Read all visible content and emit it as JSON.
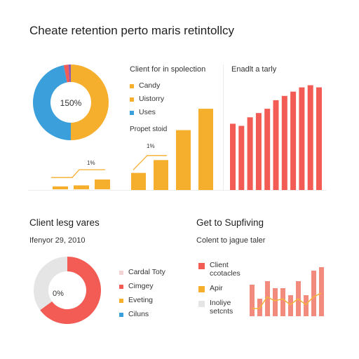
{
  "page": {
    "title": "Cheate retention perto maris retintollcy"
  },
  "colors": {
    "orange": "#f6ae2d",
    "blue": "#3b9fdb",
    "red": "#f25c54",
    "grey": "#e5e5e5",
    "purple": "#8a5ab8",
    "salmon": "#f28b7e",
    "line": "#f3b33d"
  },
  "top": {
    "donut_center_label": "150%",
    "legend_title": "Client for in spolection",
    "legend_items": [
      {
        "label": "Candy",
        "color": "#f6ae2d"
      },
      {
        "label": "Uistorry",
        "color": "#f6ae2d"
      },
      {
        "label": "Uses",
        "color": "#3b9fdb"
      }
    ],
    "sub_label": "Propet stoid",
    "small_label_1": "1%",
    "small_label_2": "1%",
    "right_title": "Enadlt a tarly"
  },
  "bottom": {
    "left_title": "Client lesg vares",
    "left_subtitle": "Ifenyor 29, 2010",
    "donut_center_label": "0%",
    "legend_items": [
      {
        "label": "Cardal Toty",
        "color": "#f2d2d2"
      },
      {
        "label": "Cimgey",
        "color": "#f25c54"
      },
      {
        "label": "Eveting",
        "color": "#f6ae2d"
      },
      {
        "label": "Ciluns",
        "color": "#3b9fdb"
      }
    ],
    "right_title": "Get to Supfiving",
    "right_subtitle": "Colent to jague taler",
    "right_legend": [
      {
        "label": "Client\nccotacles",
        "color": "#f25c54"
      },
      {
        "label": "Apir",
        "color": "#f6ae2d"
      },
      {
        "label": "Inoliye\nsetcnts",
        "color": "#e5e5e5"
      }
    ]
  },
  "chart_data": [
    {
      "type": "pie",
      "slices": [
        {
          "value": 50,
          "color": "#f6ae2d"
        },
        {
          "value": 47,
          "color": "#3b9fdb"
        },
        {
          "value": 2,
          "color": "#f25c54"
        },
        {
          "value": 1,
          "color": "#8a5ab8"
        }
      ]
    },
    {
      "type": "line",
      "values": [
        6,
        6,
        10,
        10
      ]
    },
    {
      "type": "bar",
      "values": [
        2,
        3.5
      ]
    },
    {
      "type": "line",
      "values": [
        3.5,
        6,
        6
      ]
    },
    {
      "type": "bar",
      "values": [
        4,
        7,
        14,
        19
      ]
    },
    {
      "type": "bar",
      "values": [
        15.5,
        15,
        17,
        18,
        19,
        21,
        22,
        23,
        24,
        24.5,
        24
      ]
    },
    {
      "type": "pie",
      "slices": [
        {
          "value": 65,
          "color": "#f25c54"
        },
        {
          "value": 35,
          "color": "#e5e5e5"
        }
      ]
    },
    {
      "type": "bar",
      "values": [
        9,
        5,
        10,
        8,
        8,
        6,
        10,
        6,
        13,
        14
      ]
    },
    {
      "type": "line",
      "values": [
        2,
        2,
        5,
        4,
        4.5,
        3,
        4.5,
        3,
        5,
        6
      ]
    }
  ]
}
